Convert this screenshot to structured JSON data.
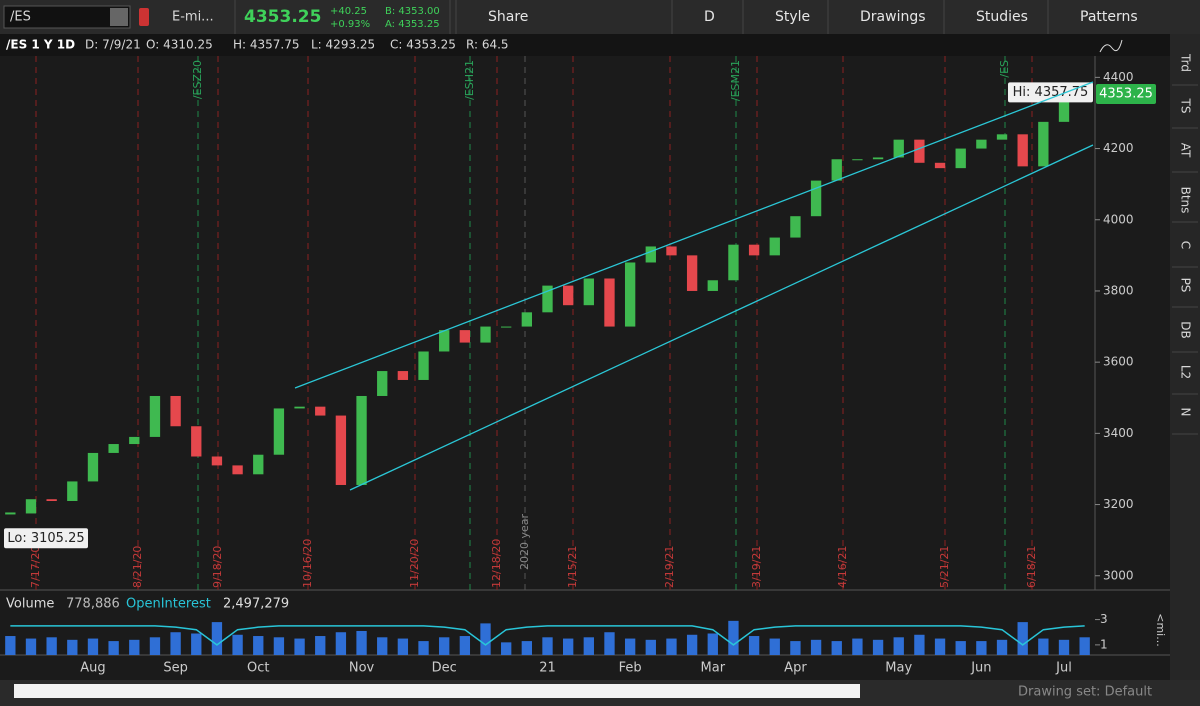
{
  "toolbar": {
    "symbol": "/ES",
    "description": "E-mi...",
    "last": "4353.25",
    "change": "+40.25",
    "change_pct": "+0.93%",
    "bid": "B: 4353.00",
    "ask": "A: 4353.25",
    "buttons": [
      "Share",
      "D",
      "Style",
      "Drawings",
      "Studies",
      "Patterns"
    ]
  },
  "info_bar": [
    "/ES 1 Y 1D",
    "D: 7/9/21",
    "O: 4310.25",
    "H: 4357.75",
    "L: 4293.25",
    "C: 4353.25",
    "R: 64.5"
  ],
  "sidebar": [
    "Trd",
    "TS",
    "AT",
    "Btns",
    "C",
    "PS",
    "DB",
    "L2",
    "N"
  ],
  "volume_panel": {
    "items": [
      "Volume",
      "778,886",
      "OpenInterest",
      "2,497,279"
    ],
    "side_label": "<mi...",
    "yticks": [
      3,
      1
    ],
    "ylim": [
      0.2,
      3.6
    ],
    "volume_color": "#2f6fd6",
    "oi_color": "#29c5d8",
    "volume": [
      1.7,
      1.5,
      1.6,
      1.4,
      1.5,
      1.3,
      1.4,
      1.6,
      2.0,
      1.9,
      2.8,
      1.8,
      1.7,
      1.6,
      1.5,
      1.7,
      2.0,
      2.1,
      1.6,
      1.5,
      1.3,
      1.6,
      1.7,
      2.7,
      1.2,
      1.3,
      1.6,
      1.5,
      1.6,
      2.0,
      1.5,
      1.4,
      1.5,
      1.8,
      1.9,
      2.9,
      1.7,
      1.5,
      1.3,
      1.4,
      1.3,
      1.5,
      1.4,
      1.6,
      1.8,
      1.5,
      1.3,
      1.3,
      1.4,
      2.8,
      1.5,
      1.4,
      1.6
    ],
    "open_interest": [
      2.5,
      2.5,
      2.5,
      2.5,
      2.5,
      2.5,
      2.5,
      2.5,
      2.4,
      2.2,
      1.0,
      2.2,
      2.4,
      2.5,
      2.5,
      2.5,
      2.5,
      2.5,
      2.5,
      2.5,
      2.5,
      2.4,
      2.2,
      1.0,
      2.2,
      2.4,
      2.5,
      2.5,
      2.5,
      2.5,
      2.5,
      2.5,
      2.5,
      2.5,
      2.2,
      1.0,
      2.2,
      2.4,
      2.5,
      2.5,
      2.5,
      2.5,
      2.5,
      2.5,
      2.5,
      2.5,
      2.5,
      2.4,
      2.2,
      1.0,
      2.2,
      2.4,
      2.5
    ]
  },
  "markers": {
    "expirations": [
      "7/17/20",
      "8/21/20",
      "9/18/20",
      "10/16/20",
      "11/20/20",
      "12/18/20",
      "1/15/21",
      "2/19/21",
      "3/19/21",
      "4/16/21",
      "5/21/21",
      "6/18/21"
    ],
    "rollovers": [
      "/ESZ20",
      "/ESH21",
      "/ESM21",
      "/ES"
    ],
    "year_label": "2020 year"
  },
  "footer": {
    "drawing_set": "Drawing set: Default"
  },
  "chart_data": {
    "type": "candlestick",
    "up_color": "#3fb950",
    "down_color": "#e5484d",
    "categories": [
      null,
      null,
      null,
      null,
      "Aug",
      null,
      null,
      null,
      "Sep",
      null,
      null,
      null,
      "Oct",
      null,
      null,
      null,
      null,
      "Nov",
      null,
      null,
      null,
      "Dec",
      null,
      null,
      null,
      null,
      "21",
      null,
      null,
      null,
      "Feb",
      null,
      null,
      null,
      "Mar",
      null,
      null,
      null,
      "Apr",
      null,
      null,
      null,
      null,
      "May",
      null,
      null,
      null,
      "Jun",
      null,
      null,
      null,
      "Jul",
      null
    ],
    "values": [
      3175,
      3215,
      3210,
      3265,
      3345,
      3370,
      3390,
      3505,
      3420,
      3335,
      3310,
      3285,
      3340,
      3470,
      3475,
      3450,
      3255,
      3505,
      3575,
      3550,
      3630,
      3690,
      3655,
      3700,
      3700,
      3740,
      3815,
      3760,
      3835,
      3700,
      3880,
      3925,
      3900,
      3800,
      3830,
      3930,
      3900,
      3950,
      4010,
      4110,
      4170,
      4170,
      4175,
      4225,
      4160,
      4145,
      4200,
      4225,
      4240,
      4150,
      4275,
      4350,
      4353.25
    ],
    "ylim": [
      2960,
      4460
    ],
    "yticks": [
      3000,
      3200,
      3400,
      3600,
      3800,
      4000,
      4200,
      4400
    ],
    "high_label": {
      "value": 4357.75,
      "label": "Hi: 4357.75"
    },
    "low_label": {
      "value": 3105.25,
      "label": "Lo: 3105.25"
    },
    "last_label": {
      "value": 4353.25,
      "label": "4353.25"
    }
  }
}
